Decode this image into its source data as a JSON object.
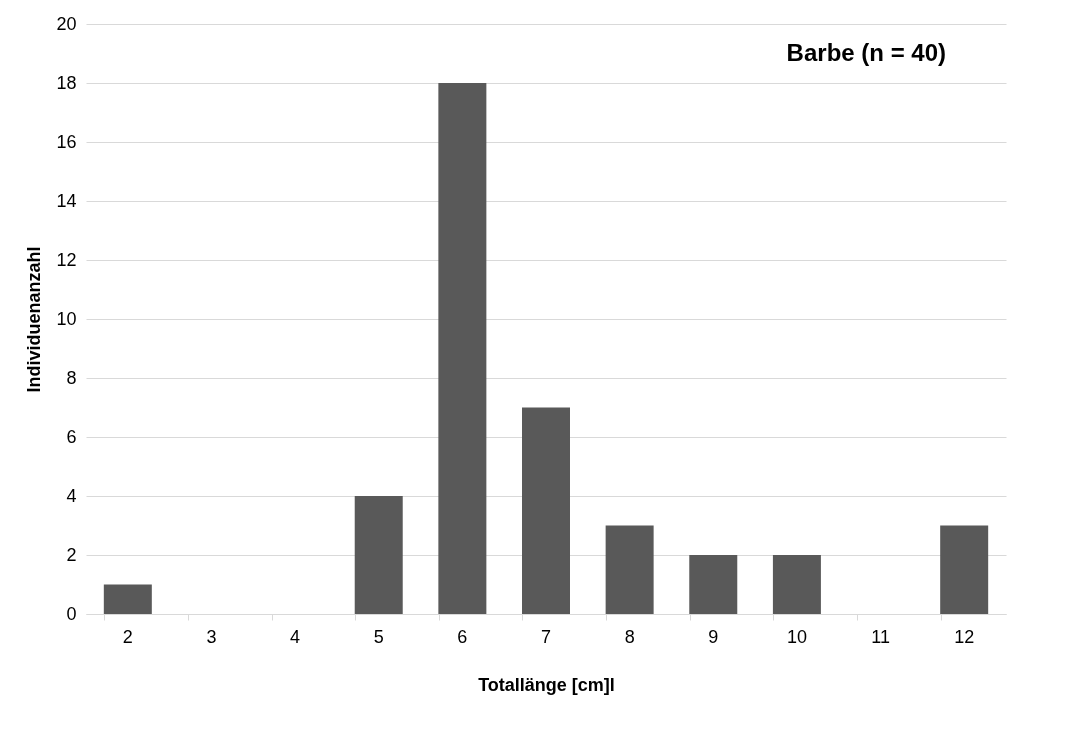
{
  "chart_data": {
    "type": "bar",
    "xlabel": "Totallänge [cm]l",
    "ylabel": "Individuenanzahl",
    "annotations": [
      "Barbe (n = 40)"
    ],
    "categories": [
      "2",
      "3",
      "4",
      "5",
      "6",
      "7",
      "8",
      "9",
      "10",
      "11",
      "12"
    ],
    "values": [
      1,
      0,
      0,
      4,
      18,
      7,
      3,
      2,
      2,
      0,
      3
    ],
    "color": "#595959",
    "ylim": [
      0,
      20
    ],
    "yticks": [
      0,
      2,
      4,
      6,
      8,
      10,
      12,
      14,
      16,
      18,
      20
    ],
    "grid": "y"
  }
}
